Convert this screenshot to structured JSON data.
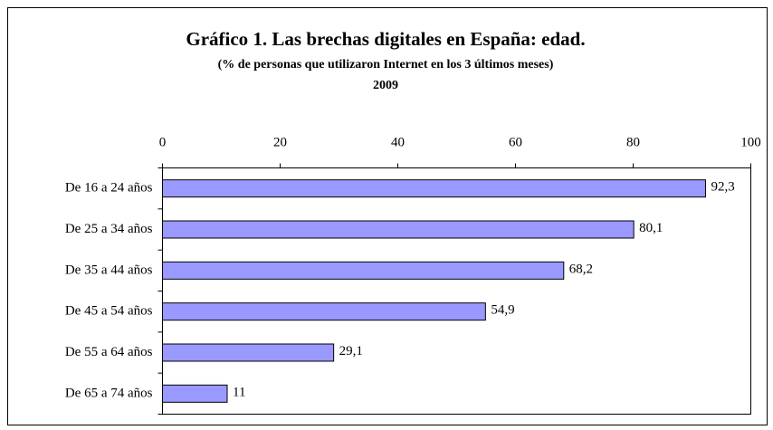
{
  "chart_data": {
    "type": "barh",
    "title": "Gráfico 1. Las brechas digitales en España: edad.",
    "subtitle": "(% de personas que utilizaron Internet en los 3 últimos meses)",
    "note": "2009",
    "categories": [
      "De 16 a 24 años",
      "De 25 a 34 años",
      "De 35 a 44 años",
      "De 45 a 54 años",
      "De 55 a 64 años",
      "De 65 a 74 años"
    ],
    "values": [
      92.3,
      80.1,
      68.2,
      54.9,
      29.1,
      11
    ],
    "value_labels": [
      "92,3",
      "80,1",
      "68,2",
      "54,9",
      "29,1",
      "11"
    ],
    "color": "#9999ff",
    "xlim": [
      0,
      100
    ],
    "xticks": [
      0,
      20,
      40,
      60,
      80,
      100
    ]
  }
}
